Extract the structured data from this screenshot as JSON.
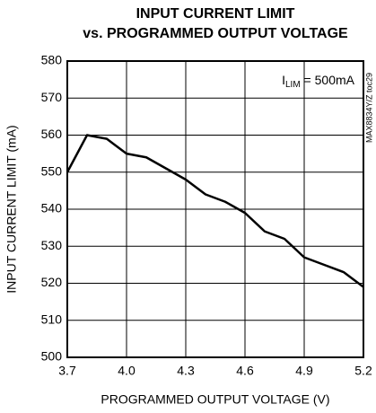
{
  "chart_data": {
    "type": "line",
    "title": [
      "INPUT CURRENT LIMIT",
      "vs. PROGRAMMED OUTPUT VOLTAGE"
    ],
    "xlabel": "PROGRAMMED OUTPUT VOLTAGE (V)",
    "ylabel": "INPUT CURRENT LIMIT (mA)",
    "annotation": {
      "main": "I",
      "sub": "LIM",
      "rest": " = 500mA"
    },
    "side_label": "MAX8834Y/Z toc29",
    "x": [
      3.7,
      3.8,
      3.9,
      4.0,
      4.1,
      4.2,
      4.3,
      4.4,
      4.5,
      4.6,
      4.7,
      4.8,
      4.9,
      5.0,
      5.1,
      5.2
    ],
    "series": [
      {
        "color": "#000000",
        "values": [
          550,
          560,
          559,
          555,
          554,
          551,
          548,
          544,
          542,
          539,
          534,
          532,
          527,
          525,
          523,
          519
        ]
      }
    ],
    "xlim": [
      3.7,
      5.2
    ],
    "xticks": [
      3.7,
      {
        "value": 4,
        "label": "4.0"
      },
      4.3,
      4.6,
      4.9,
      5.2
    ],
    "ylim": [
      500,
      580
    ],
    "yticks": [
      500,
      510,
      520,
      530,
      540,
      550,
      560,
      570,
      580
    ],
    "grid": true
  }
}
